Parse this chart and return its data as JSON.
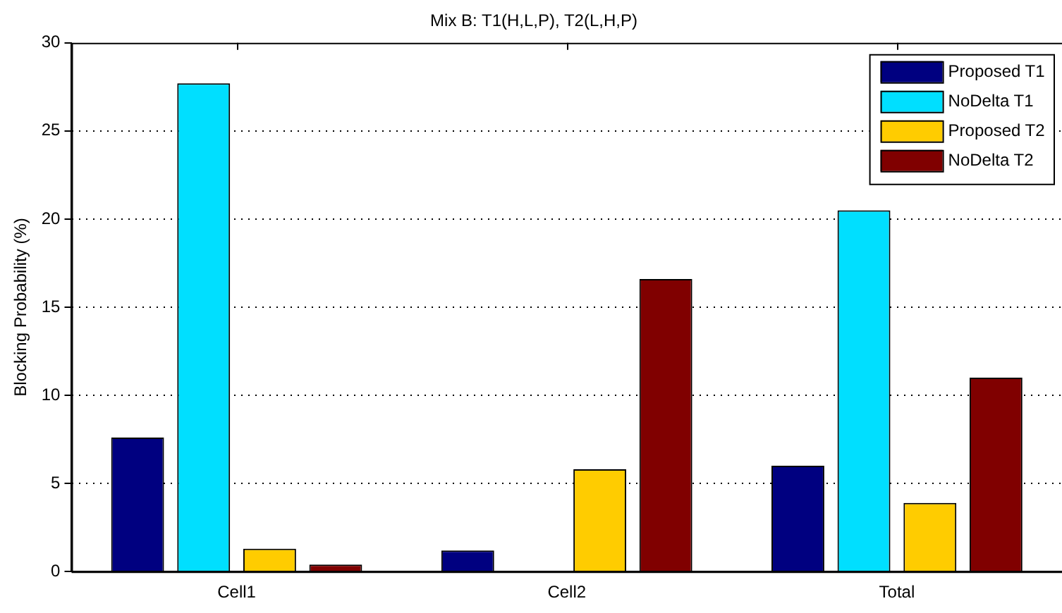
{
  "chart_data": {
    "type": "bar",
    "title": "Mix B: T1(H,L,P), T2(L,H,P)",
    "ylabel": "Blocking Probability (%)",
    "categories": [
      "Cell1",
      "Cell2",
      "Total"
    ],
    "series": [
      {
        "name": "Proposed T1",
        "color": "#000080",
        "values": [
          7.6,
          1.2,
          6.0
        ]
      },
      {
        "name": "NoDelta T1",
        "color": "#00dfff",
        "values": [
          27.7,
          0,
          20.5
        ]
      },
      {
        "name": "Proposed T2",
        "color": "#ffcc00",
        "values": [
          1.3,
          5.8,
          3.9
        ]
      },
      {
        "name": "NoDelta T2",
        "color": "#800000",
        "values": [
          0.4,
          16.6,
          11.0
        ]
      }
    ],
    "ylim": [
      0,
      30
    ],
    "yticks": [
      0,
      5,
      10,
      15,
      20,
      25,
      30
    ],
    "grid": "y",
    "legend": "top right"
  }
}
